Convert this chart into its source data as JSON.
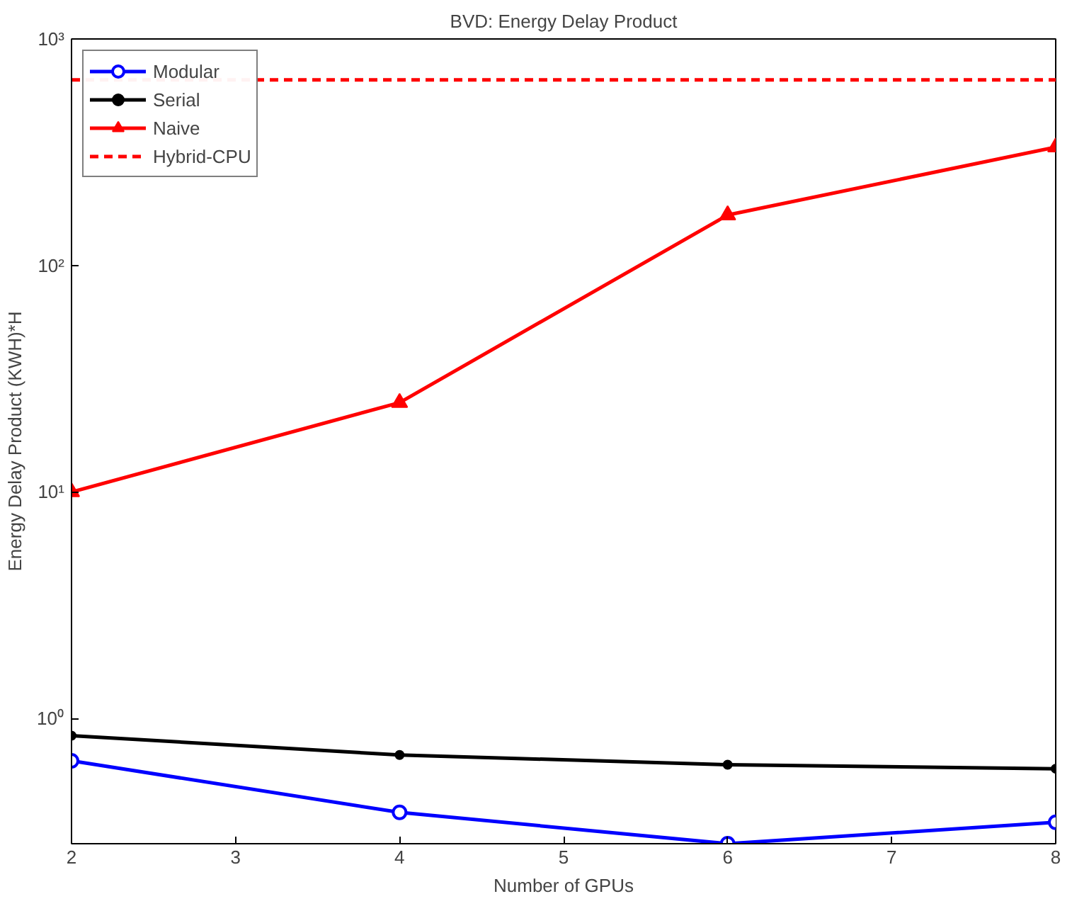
{
  "chart_data": {
    "type": "line",
    "title": "BVD: Energy Delay Product",
    "xlabel": "Number of GPUs",
    "ylabel": "Energy Delay Product (KWH)*H",
    "x": [
      2,
      4,
      6,
      8
    ],
    "log": "y",
    "xlim": [
      2,
      8
    ],
    "xticks": [
      2,
      3,
      4,
      5,
      6,
      7,
      8
    ],
    "ylim": [
      0.28,
      1000
    ],
    "yticks": [
      {
        "value": 1,
        "label": "10⁰"
      },
      {
        "value": 10,
        "label": "10¹"
      },
      {
        "value": 100,
        "label": "10²"
      },
      {
        "value": 1000,
        "label": "10³"
      }
    ],
    "legend": "top left",
    "grid": false,
    "series": [
      {
        "name": "Modular",
        "color": "#0000ff",
        "values": [
          0.65,
          0.385,
          0.28,
          0.348
        ],
        "marker": "circle",
        "line_style": "solid"
      },
      {
        "name": "Serial",
        "color": "#000000",
        "values": [
          0.84,
          0.69,
          0.625,
          0.6
        ],
        "marker": "dot",
        "line_style": "solid"
      },
      {
        "name": "Naive",
        "color": "#ff0000",
        "values": [
          10,
          24.8,
          167,
          333
        ],
        "marker": "triangle",
        "line_style": "solid"
      },
      {
        "name": "Hybrid-CPU",
        "color": "#ff0000",
        "values": [
          660,
          660,
          660,
          660
        ],
        "marker": "none",
        "line_style": "dashed"
      }
    ]
  }
}
